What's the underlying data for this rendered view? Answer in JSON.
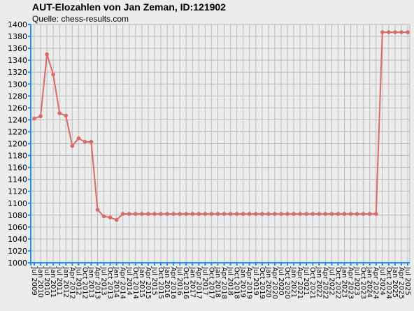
{
  "chart_data": {
    "type": "line",
    "title": "AUT-Elozahlen von Jan Zeman, ID:121902",
    "subtitle": "Quelle: chess-results.com",
    "xlabel": "",
    "ylabel": "",
    "ylim": [
      1000,
      1400
    ],
    "ytick_step": 20,
    "grid": true,
    "legend": "none",
    "colors": {
      "line": "#d86a6a",
      "grid": "#bcbcbc",
      "axis": "#1e90ff",
      "background": "#ececec"
    },
    "categories": [
      "Jul 2009",
      "Jan 2010",
      "Jul 2010",
      "Jan 2011",
      "Jul 2011",
      "Jan 2012",
      "Apr 2012",
      "Jul 2012",
      "Oct 2012",
      "Jan 2013",
      "Apr 2013",
      "Jul 2013",
      "Oct 2013",
      "Jan 2014",
      "Apr 2014",
      "Jul 2014",
      "Oct 2014",
      "Jan 2015",
      "Apr 2015",
      "Jul 2015",
      "Oct 2015",
      "Jan 2016",
      "Apr 2016",
      "Jul 2016",
      "Oct 2016",
      "Jan 2017",
      "Apr 2017",
      "Jul 2017",
      "Oct 2017",
      "Jan 2018",
      "Apr 2018",
      "Jul 2018",
      "Oct 2018",
      "Jan 2019",
      "Apr 2019",
      "Jul 2019",
      "Oct 2019",
      "Jan 2020",
      "Apr 2020",
      "Jul 2020",
      "Oct 2020",
      "Jan 2021",
      "Apr 2021",
      "Jul 2021",
      "Oct 2021",
      "Jan 2022",
      "Apr 2022",
      "Jul 2022",
      "Oct 2022",
      "Jan 2023",
      "Apr 2023",
      "Jul 2023",
      "Oct 2023",
      "Jan 2024",
      "Apr 2024",
      "Jul 2024",
      "Oct 2024",
      "Jan 2025",
      "Apr 2025",
      "Jul 2025"
    ],
    "values": [
      1242,
      1246,
      1350,
      1316,
      1251,
      1247,
      1196,
      1209,
      1203,
      1203,
      1089,
      1078,
      1076,
      1072,
      1082,
      1082,
      1082,
      1082,
      1082,
      1082,
      1082,
      1082,
      1082,
      1082,
      1082,
      1082,
      1082,
      1082,
      1082,
      1082,
      1082,
      1082,
      1082,
      1082,
      1082,
      1082,
      1082,
      1082,
      1082,
      1082,
      1082,
      1082,
      1082,
      1082,
      1082,
      1082,
      1082,
      1082,
      1082,
      1082,
      1082,
      1082,
      1082,
      1082,
      1082,
      1387,
      1387,
      1387,
      1387,
      1387
    ]
  }
}
